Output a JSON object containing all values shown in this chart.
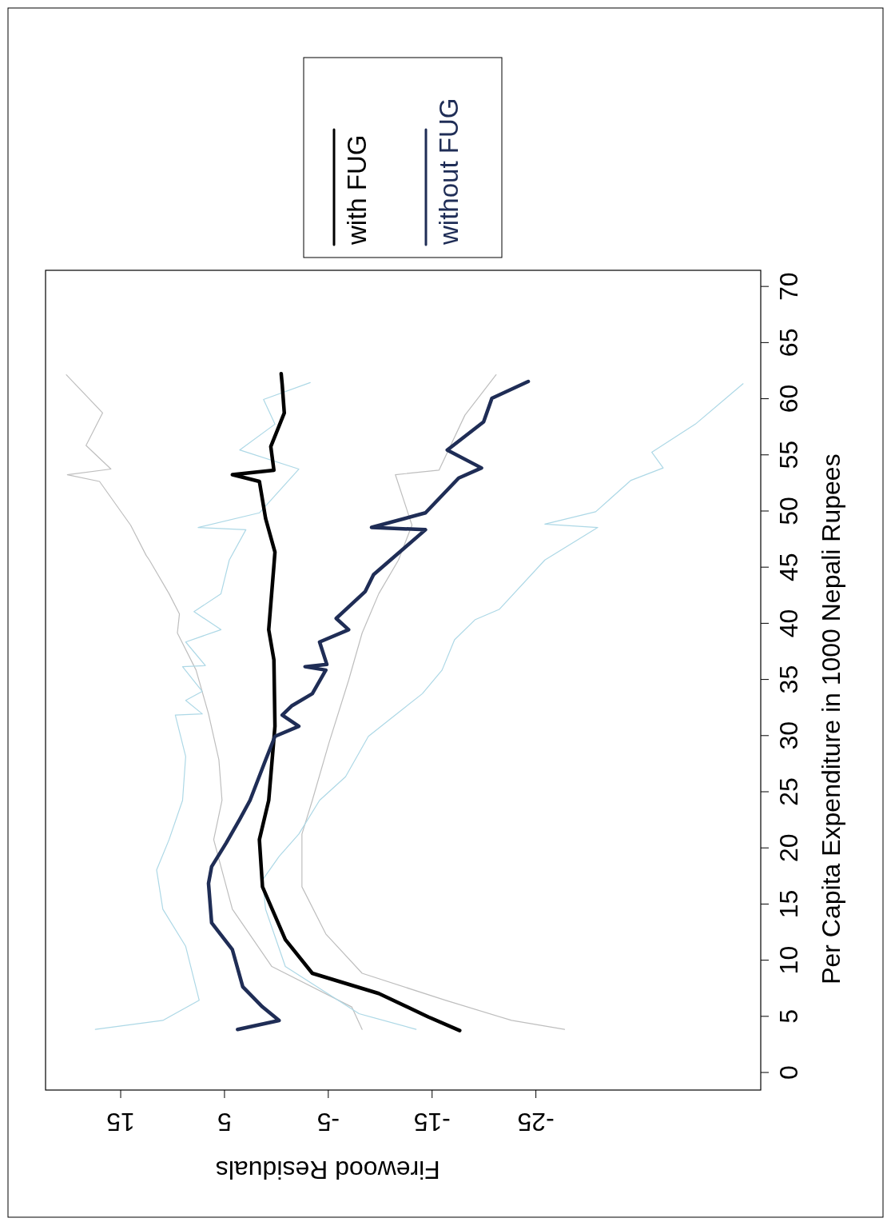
{
  "chart_data": {
    "type": "line",
    "xlabel": "Firewood Residuals",
    "ylabel": "Per Capita Expenditure in 1000 Nepali Rupees",
    "xlim": [
      22.2,
      -46.7
    ],
    "ylim": [
      -1.6,
      71.4
    ],
    "xticks": [
      15,
      5,
      -5,
      -15,
      -25
    ],
    "yticks": [
      0,
      5,
      10,
      15,
      20,
      25,
      30,
      35,
      40,
      45,
      50,
      55,
      60,
      65,
      70
    ],
    "legend": "top",
    "grid": false,
    "line_style": "solid",
    "marker": "none",
    "series": [
      {
        "color": "#bebebe",
        "values": [
          3.8,
          5.8,
          9.4,
          14.5,
          20.7,
          24.2,
          27.8,
          31.9,
          35.8,
          39.1,
          40.8,
          42.6,
          45.6,
          46,
          48.7,
          52.6,
          53.2,
          53.7,
          55.8,
          58.7,
          62.1
        ],
        "x": [
          -8.3,
          -7.3,
          0.4,
          4.2,
          6.0,
          5.2,
          5.5,
          6.5,
          7.7,
          9.5,
          9.3,
          10.3,
          12.2,
          12.5,
          14.0,
          17.0,
          20.1,
          15.9,
          18.3,
          16.7,
          20.2
        ]
      },
      {
        "color": "#bebebe",
        "values": [
          3.8,
          4.6,
          6.4,
          8.8,
          12.3,
          16.5,
          21.2,
          24.2,
          29.3,
          34.9,
          39.1,
          42.6,
          45.6,
          48.7,
          53.2,
          53.6,
          58.5,
          62.1
        ],
        "x": [
          -27.8,
          -22.7,
          -16.3,
          -8.3,
          -4.8,
          -2.5,
          -2.5,
          -3.5,
          -5.1,
          -7.0,
          -8.3,
          -9.9,
          -11.8,
          -13.1,
          -11.5,
          -15.7,
          -18.2,
          -21.2
        ]
      },
      {
        "color": "#add8e6",
        "values": [
          3.8,
          4.6,
          6.4,
          11.2,
          14.5,
          18.0,
          20.7,
          24.2,
          28.1,
          31.8,
          31.9,
          33.1,
          33.9,
          36.1,
          36.2,
          38.3,
          39.4,
          41.0,
          42.6,
          45.6,
          48.3,
          48.5,
          49.8,
          53.7,
          55.4,
          57.7,
          59.9,
          61.4
        ],
        "x": [
          17.4,
          10.9,
          7.4,
          8.7,
          10.9,
          11.5,
          10.3,
          9.0,
          8.7,
          9.7,
          7.1,
          8.7,
          7.1,
          9.0,
          6.8,
          8.7,
          5.3,
          7.9,
          5.3,
          4.5,
          2.9,
          7.5,
          1.6,
          -2.2,
          3.5,
          0.1,
          1.2,
          -3.3
        ]
      },
      {
        "color": "#add8e6",
        "values": [
          3.8,
          5.2,
          9.4,
          14.5,
          17.1,
          19.2,
          21.2,
          24.2,
          26.3,
          29.9,
          31.8,
          33.7,
          35.8,
          38.5,
          40.3,
          41.2,
          45.6,
          48.5,
          48.8,
          49.9,
          52.7,
          53.8,
          55.2,
          57.7,
          61.3
        ],
        "x": [
          -13.5,
          -8.0,
          -0.9,
          1.0,
          1.3,
          -0.3,
          -2.2,
          -4.2,
          -6.7,
          -8.9,
          -11.5,
          -14.1,
          -16.0,
          -17.2,
          -19.2,
          -21.5,
          -25.9,
          -31.0,
          -25.9,
          -30.8,
          -34.2,
          -37.3,
          -36.2,
          -40.4,
          -45.0
        ]
      },
      {
        "name": "with FUG",
        "color": "#000000",
        "values": [
          3.7,
          4.9,
          7.0,
          8.8,
          11.8,
          16.5,
          20.7,
          24.2,
          30.8,
          36.7,
          39.4,
          45.1,
          46.3,
          49.3,
          52.6,
          53.2,
          53.6,
          55.7,
          58.7,
          61.2,
          62.2
        ],
        "x": [
          -17.7,
          -14.7,
          -9.9,
          -3.5,
          -0.9,
          1.3,
          1.6,
          0.7,
          0.1,
          0.2,
          0.7,
          0.2,
          0.1,
          1.0,
          1.6,
          4.2,
          0.2,
          0.5,
          -0.8,
          -0.6,
          -0.5
        ]
      },
      {
        "name": "without FUG",
        "color": "#1f2d56",
        "values": [
          3.8,
          4.6,
          5.8,
          7.6,
          10.9,
          13.3,
          16.8,
          18.3,
          20.4,
          22.5,
          24.2,
          27.8,
          29.9,
          30.8,
          31.8,
          32.6,
          33.7,
          35.8,
          36.1,
          36.3,
          38.3,
          39.4,
          40.4,
          42.8,
          44.3,
          48.3,
          48.5,
          49.8,
          52.9,
          53.8,
          55.4,
          57.9,
          60.0,
          61.5
        ],
        "x": [
          3.7,
          -0.3,
          1.3,
          3.2,
          4.2,
          6.2,
          6.5,
          6.2,
          4.8,
          3.5,
          2.5,
          1.0,
          0.1,
          -2.2,
          -0.6,
          -1.5,
          -3.5,
          -4.8,
          -2.8,
          -4.9,
          -4.2,
          -7.0,
          -5.8,
          -8.6,
          -9.4,
          -14.4,
          -9.2,
          -14.4,
          -17.6,
          -19.8,
          -16.5,
          -20.0,
          -20.8,
          -24.3
        ]
      }
    ]
  }
}
